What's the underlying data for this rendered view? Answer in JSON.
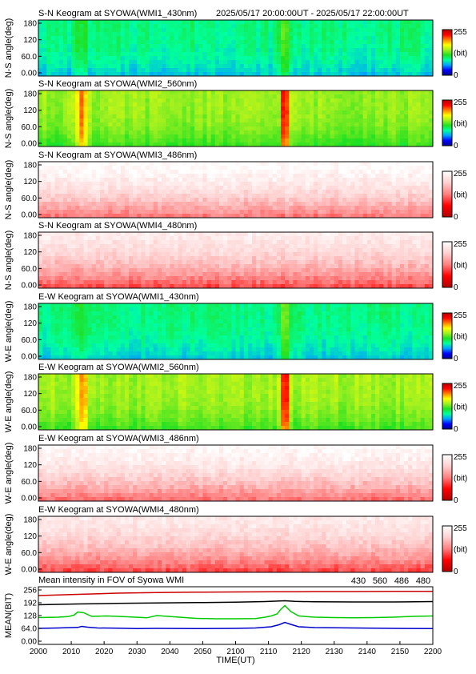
{
  "header": {
    "time_range": "2025/05/17 20:00:00UT - 2025/05/17 22:00:00UT"
  },
  "colors": {
    "colormap_rainbow": [
      "#00008b",
      "#0000ff",
      "#00a0ff",
      "#00ffa0",
      "#20e020",
      "#a0f020",
      "#ffff00",
      "#ff8000",
      "#ff0000",
      "#b00000"
    ],
    "colormap_red": [
      "#b00000",
      "#ff0000",
      "#ff8080",
      "#ffd0d0",
      "#ffffff"
    ],
    "series_430": "#0000cc",
    "series_560": "#00cc00",
    "series_486": "#cc0000",
    "series_480": "#000000"
  },
  "chart_data": [
    {
      "type": "heatmap",
      "title": "S-N Keogram at SYOWA(WMI1_430nm)",
      "ylabel": "N-S angle(deg)",
      "yticks": [
        "180",
        "120",
        "60.0",
        "0.00"
      ],
      "ylim": [
        0,
        180
      ],
      "colorbar": {
        "max": "255",
        "unit": "(bit)",
        "min": "0"
      },
      "colormap": "rainbow",
      "base": 0.36,
      "events": [
        {
          "t": 2022,
          "w": 3,
          "amp": 0.08
        },
        {
          "t": 2125,
          "w": 3,
          "amp": 0.14
        }
      ]
    },
    {
      "type": "heatmap",
      "title": "S-N Keogram at SYOWA(WMI2_560nm)",
      "ylabel": "N-S angle(deg)",
      "yticks": [
        "180",
        "120",
        "60.0",
        "0.00"
      ],
      "ylim": [
        0,
        180
      ],
      "colorbar": {
        "max": "255",
        "unit": "(bit)",
        "min": "0"
      },
      "colormap": "rainbow",
      "base": 0.55,
      "events": [
        {
          "t": 2022,
          "w": 3,
          "amp": 0.25
        },
        {
          "t": 2125,
          "w": 2,
          "amp": 0.4
        }
      ]
    },
    {
      "type": "heatmap",
      "title": "S-N Keogram at SYOWA(WMI3_486nm)",
      "ylabel": "N-S angle(deg)",
      "yticks": [
        "180",
        "120",
        "60.0",
        "0.00"
      ],
      "ylim": [
        0,
        180
      ],
      "colorbar": {
        "max": "255",
        "unit": "(bit)",
        "min": "0"
      },
      "colormap": "red",
      "base": 0.82,
      "events": []
    },
    {
      "type": "heatmap",
      "title": "S-N Keogram at SYOWA(WMI4_480nm)",
      "ylabel": "N-S angle(deg)",
      "yticks": [
        "180",
        "120",
        "60.0",
        "0.00"
      ],
      "ylim": [
        0,
        180
      ],
      "colorbar": {
        "max": "255",
        "unit": "(bit)",
        "min": "0"
      },
      "colormap": "red",
      "base": 0.72,
      "events": []
    },
    {
      "type": "heatmap",
      "title": "E-W Keogram at SYOWA(WMI1_430nm)",
      "ylabel": "W-E angle(deg)",
      "yticks": [
        "180",
        "120",
        "60.0",
        "0.00"
      ],
      "ylim": [
        0,
        180
      ],
      "colorbar": {
        "max": "255",
        "unit": "(bit)",
        "min": "0"
      },
      "colormap": "rainbow",
      "base": 0.36,
      "events": [
        {
          "t": 2022,
          "w": 3,
          "amp": 0.08
        },
        {
          "t": 2125,
          "w": 3,
          "amp": 0.14
        }
      ]
    },
    {
      "type": "heatmap",
      "title": "E-W Keogram at SYOWA(WMI2_560nm)",
      "ylabel": "W-E angle(deg)",
      "yticks": [
        "180",
        "120",
        "60.0",
        "0.00"
      ],
      "ylim": [
        0,
        180
      ],
      "colorbar": {
        "max": "255",
        "unit": "(bit)",
        "min": "0"
      },
      "colormap": "rainbow",
      "base": 0.56,
      "events": [
        {
          "t": 2022,
          "w": 3,
          "amp": 0.22
        },
        {
          "t": 2125,
          "w": 2,
          "amp": 0.38
        }
      ]
    },
    {
      "type": "heatmap",
      "title": "E-W Keogram at SYOWA(WMI3_486nm)",
      "ylabel": "W-E angle(deg)",
      "yticks": [
        "180",
        "120",
        "60.0",
        "0.00"
      ],
      "ylim": [
        0,
        180
      ],
      "colorbar": {
        "max": "255",
        "unit": "(bit)",
        "min": "0"
      },
      "colormap": "red",
      "base": 0.8,
      "events": []
    },
    {
      "type": "heatmap",
      "title": "E-W Keogram at SYOWA(WMI4_480nm)",
      "ylabel": "W-E angle(deg)",
      "yticks": [
        "180",
        "120",
        "60.0",
        "0.00"
      ],
      "ylim": [
        0,
        180
      ],
      "colorbar": {
        "max": "255",
        "unit": "(bit)",
        "min": "0"
      },
      "colormap": "red",
      "base": 0.72,
      "events": []
    },
    {
      "type": "line",
      "title": "Mean intensity in FOV of Syowa WMI",
      "ylabel": "MEAN(BIT)",
      "xlabel": "TIME(UT)",
      "xlim": [
        2000,
        2200
      ],
      "ylim": [
        0,
        256
      ],
      "yticks": [
        256,
        192,
        128,
        64,
        0
      ],
      "ytick_labels": [
        "256",
        "192",
        "128",
        "64.0",
        "0.00"
      ],
      "xticks": [
        "2000",
        "2010",
        "2020",
        "2030",
        "2040",
        "2050",
        "2100",
        "2110",
        "2120",
        "2130",
        "2140",
        "2150",
        "2200"
      ],
      "legend": [
        "430",
        "560",
        "486",
        "480"
      ],
      "series": [
        {
          "name": "486",
          "color": "#cc0000",
          "x": [
            2000,
            2020,
            2040,
            2060,
            2080,
            2100,
            2120,
            2130,
            2140,
            2160,
            2180,
            2200
          ],
          "y": [
            228,
            234,
            240,
            243,
            245,
            246,
            247,
            247,
            248,
            248,
            249,
            249
          ]
        },
        {
          "name": "480",
          "color": "#000000",
          "x": [
            2000,
            2020,
            2040,
            2060,
            2080,
            2100,
            2115,
            2120,
            2125,
            2130,
            2140,
            2160,
            2180,
            2200
          ],
          "y": [
            182,
            186,
            189,
            191,
            193,
            195,
            198,
            200,
            202,
            199,
            197,
            196,
            196,
            198
          ]
        },
        {
          "name": "560",
          "color": "#00cc00",
          "x": [
            2000,
            2010,
            2015,
            2018,
            2020,
            2023,
            2027,
            2035,
            2045,
            2055,
            2060,
            2070,
            2080,
            2090,
            2100,
            2110,
            2115,
            2118,
            2121,
            2123,
            2125,
            2128,
            2132,
            2140,
            2150,
            2160,
            2170,
            2180,
            2190,
            2200
          ],
          "y": [
            118,
            120,
            123,
            130,
            146,
            142,
            124,
            126,
            122,
            117,
            128,
            121,
            114,
            112,
            112,
            113,
            120,
            126,
            136,
            160,
            178,
            148,
            126,
            120,
            118,
            117,
            118,
            120,
            124,
            126
          ]
        },
        {
          "name": "430",
          "color": "#0000cc",
          "x": [
            2000,
            2010,
            2020,
            2022,
            2025,
            2030,
            2040,
            2050,
            2060,
            2080,
            2100,
            2110,
            2118,
            2122,
            2125,
            2128,
            2132,
            2140,
            2160,
            2180,
            2200
          ],
          "y": [
            64,
            66,
            69,
            74,
            70,
            66,
            65,
            63,
            64,
            63,
            64,
            66,
            72,
            82,
            94,
            84,
            72,
            68,
            66,
            64,
            63
          ]
        }
      ]
    }
  ]
}
